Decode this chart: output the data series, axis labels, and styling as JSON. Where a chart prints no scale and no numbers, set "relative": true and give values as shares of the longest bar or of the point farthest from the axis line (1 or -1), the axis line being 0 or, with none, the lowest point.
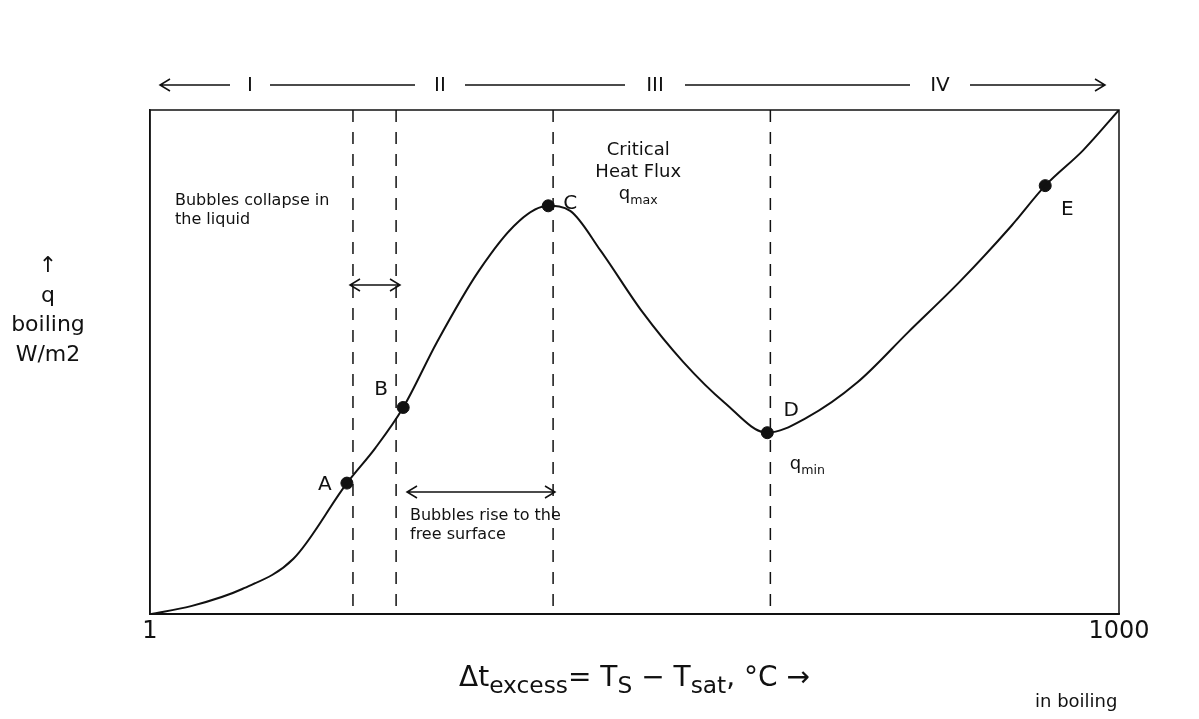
{
  "chart_data": {
    "type": "line",
    "xlabel": "Δt$_{excess}$= T$_{S}$ − T$_{sat}$, °C →",
    "ylabel": "↑ q boiling W/m2",
    "log": "x",
    "relative": true,
    "tick_labels": "x",
    "xlim": [
      1,
      1000
    ],
    "xticks": [
      1,
      1000
    ],
    "series": [
      {
        "color": "#111111",
        "marker": "none",
        "line_style": "solid",
        "x": [
          1,
          1.34,
          1.93,
          2.78,
          4.07,
          4.99,
          6.08,
          7.74,
          10.4,
          13.9,
          17.1,
          20.0,
          24.9,
          33.4,
          44.8,
          60.0,
          81.5,
          108,
          155,
          223,
          322,
          464,
          591,
          774,
          1000
        ],
        "values": [
          0,
          0.016,
          0.05,
          0.11,
          0.26,
          0.33,
          0.41,
          0.54,
          0.68,
          0.78,
          0.81,
          0.8,
          0.72,
          0.6,
          0.5,
          0.42,
          0.36,
          0.39,
          0.46,
          0.56,
          0.66,
          0.77,
          0.85,
          0.92,
          1.0
        ]
      },
      {
        "type": "scatter",
        "color": "#111111",
        "marker": "circle",
        "x": [
          4.07,
          6.08,
          17.1,
          81.5,
          591
        ],
        "values": [
          0.26,
          0.41,
          0.81,
          0.36,
          0.85
        ]
      }
    ],
    "ref_lines": [
      {
        "axis": "x",
        "value": 4.25,
        "line_style": "dashed"
      },
      {
        "axis": "x",
        "value": 5.78,
        "line_style": "dashed"
      },
      {
        "axis": "x",
        "value": 17.7,
        "line_style": "dashed"
      },
      {
        "axis": "x",
        "value": 83.3,
        "line_style": "dashed"
      }
    ],
    "annotations": [
      {
        "text": "A",
        "x": 4.07,
        "y": 0.26
      },
      {
        "text": "B",
        "x": 6.08,
        "y": 0.41
      },
      {
        "text": "C",
        "x": 17.1,
        "y": 0.81
      },
      {
        "text": "D",
        "x": 81.5,
        "y": 0.36
      },
      {
        "text": "E",
        "x": 591,
        "y": 0.85
      },
      {
        "text": "Critical Heat Flux q$_{max}$",
        "x": 17.1,
        "y": 0.81
      },
      {
        "text": "q$_{min}$",
        "x": 81.5,
        "y": 0.36
      },
      "I",
      "II",
      "III",
      "IV",
      "Bubbles collapse in the liquid",
      "Bubbles rise to the free surface",
      "in boiling"
    ]
  }
}
